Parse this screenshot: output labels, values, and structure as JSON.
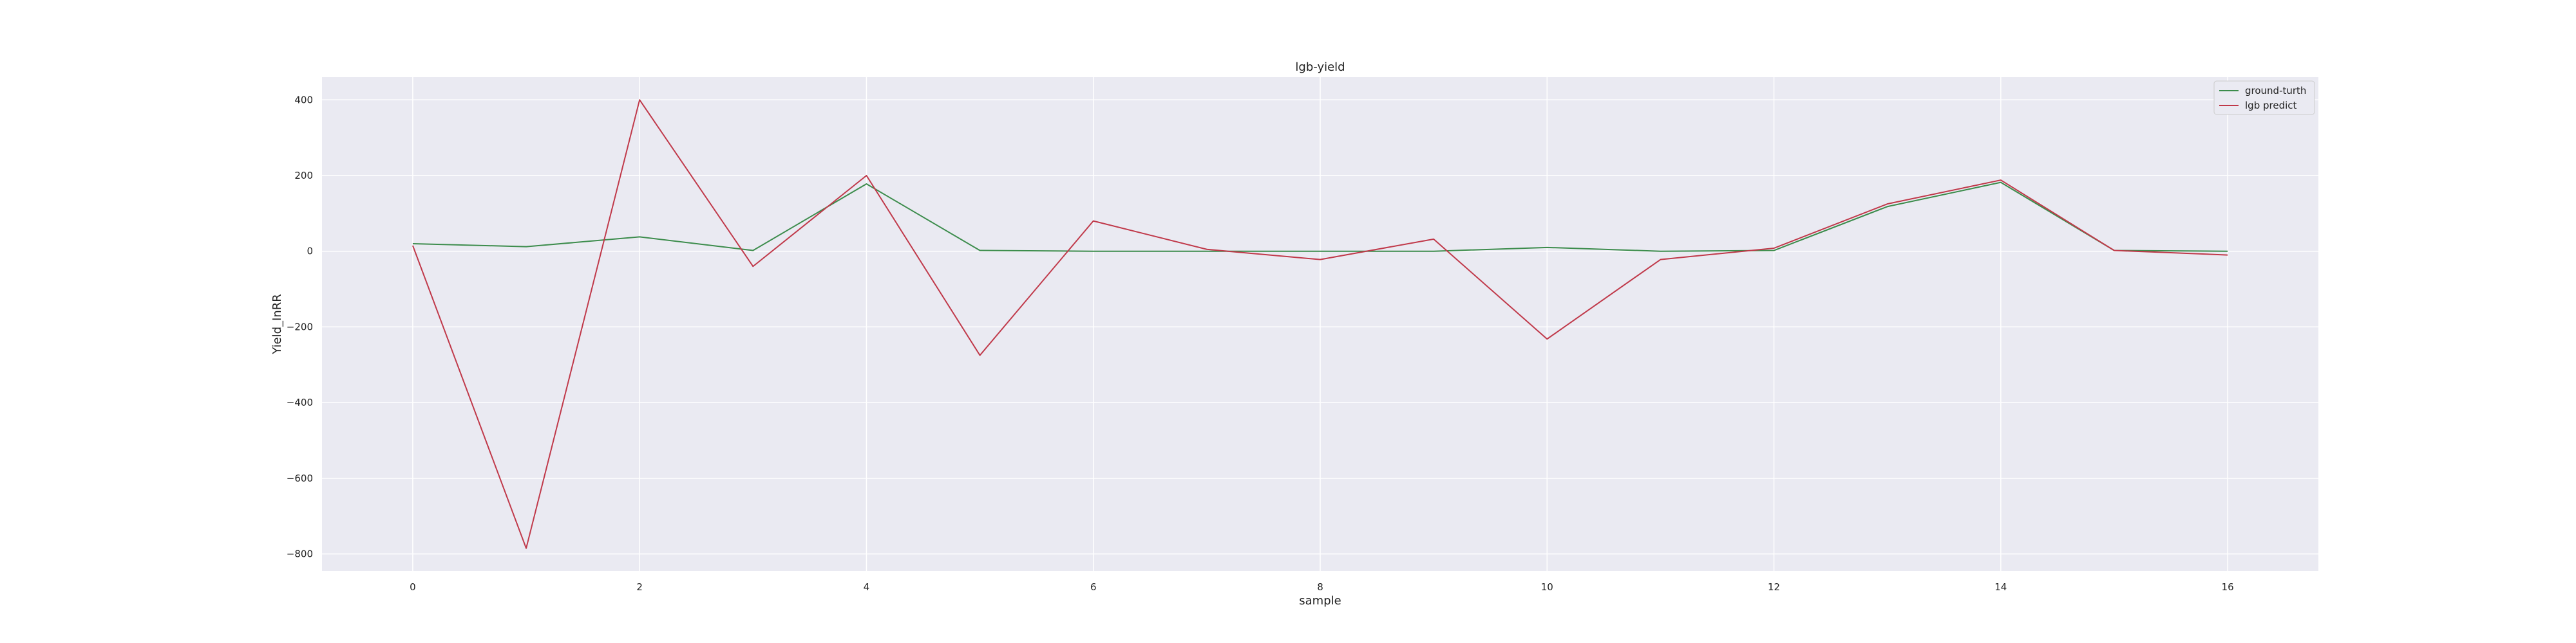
{
  "chart_data": {
    "type": "line",
    "title": "lgb-yield",
    "xlabel": "sample",
    "ylabel": "Yield_InRR",
    "x": [
      0,
      1,
      2,
      3,
      4,
      5,
      6,
      7,
      8,
      9,
      10,
      11,
      12,
      13,
      14,
      15,
      16
    ],
    "xlim": [
      -0.8,
      16.8
    ],
    "ylim": [
      -845,
      460
    ],
    "xticks": [
      0,
      2,
      4,
      6,
      8,
      10,
      12,
      14,
      16
    ],
    "yticks": [
      400,
      200,
      0,
      -200,
      -400,
      -600,
      -800
    ],
    "ytick_labels": [
      "400",
      "200",
      "0",
      "−200",
      "−400",
      "−600",
      "−800"
    ],
    "grid": true,
    "legend_position": "top-right",
    "series": [
      {
        "name": "ground-turth",
        "color": "#3c8c4c",
        "values": [
          20,
          12,
          38,
          2,
          178,
          2,
          0,
          0,
          0,
          0,
          10,
          0,
          2,
          118,
          182,
          2,
          0
        ]
      },
      {
        "name": "lgb predict",
        "color": "#c0394a",
        "values": [
          15,
          -785,
          400,
          -40,
          200,
          -275,
          80,
          5,
          -22,
          32,
          -232,
          -22,
          8,
          125,
          188,
          2,
          -10
        ]
      }
    ]
  }
}
